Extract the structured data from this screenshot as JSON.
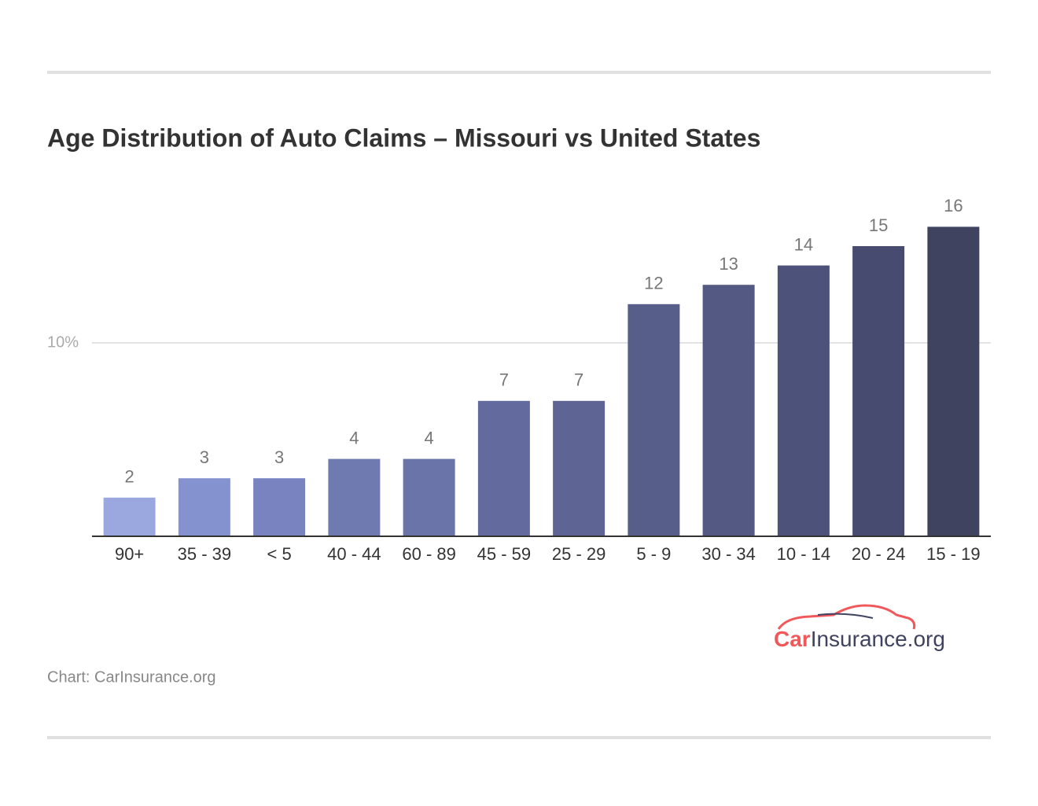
{
  "chart_data": {
    "type": "bar",
    "title": "Age Distribution of Auto Claims – Missouri vs United States",
    "categories": [
      "90+",
      "35 - 39",
      "< 5",
      "40 - 44",
      "60 - 89",
      "45 - 59",
      "25 - 29",
      "5 - 9",
      "30 - 34",
      "10 - 14",
      "20 - 24",
      "15 - 19"
    ],
    "values": [
      2,
      3,
      3,
      4,
      4,
      7,
      7,
      12,
      13,
      14,
      15,
      16
    ],
    "colors": [
      "#9ba8e0",
      "#8592d0",
      "#7883bf",
      "#6f7ab0",
      "#6a74a8",
      "#636b9e",
      "#5e6594",
      "#585e8a",
      "#535982",
      "#4d527a",
      "#474b6f",
      "#404360"
    ],
    "ylim": [
      0,
      16
    ],
    "yticks": [
      {
        "value": 10,
        "label": "10%"
      }
    ],
    "grid": true,
    "source": "Chart: CarInsurance.org",
    "logo": {
      "accent": "Car",
      "rest": "Insurance.org"
    }
  }
}
